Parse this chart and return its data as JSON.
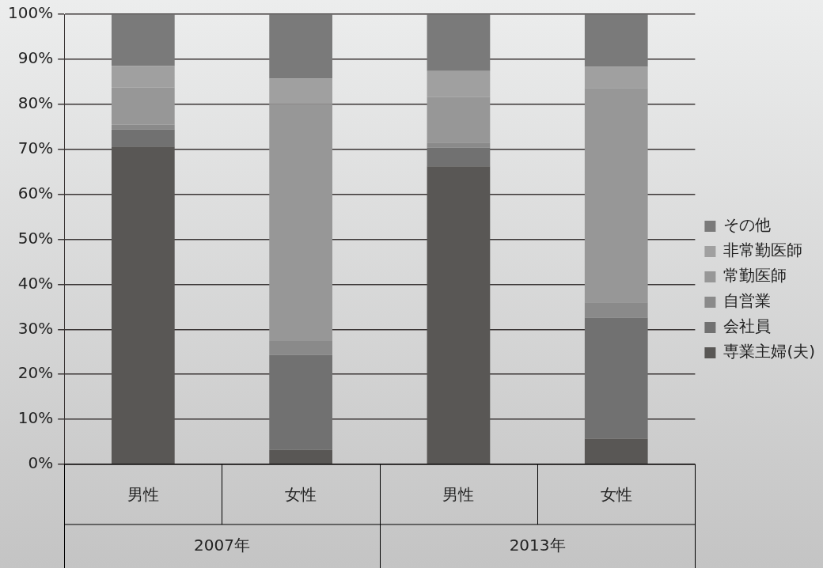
{
  "chart_data": {
    "type": "bar",
    "stacked": true,
    "categories": [
      "男性",
      "女性",
      "男性",
      "女性"
    ],
    "annotations": [
      "2007年",
      "2013年"
    ],
    "series": [
      {
        "name": "専業主婦(夫)",
        "color": "#595755",
        "values": [
          70.6,
          3.2,
          66.2,
          5.7
        ]
      },
      {
        "name": "会社員",
        "color": "#717171",
        "values": [
          3.8,
          21.1,
          4.2,
          26.9
        ]
      },
      {
        "name": "自営業",
        "color": "#8a8a8a",
        "values": [
          1.1,
          3.1,
          1.1,
          3.4
        ]
      },
      {
        "name": "常勤医師",
        "color": "#979797",
        "values": [
          8.2,
          52.6,
          10.1,
          47.6
        ]
      },
      {
        "name": "非常勤医師",
        "color": "#a0a0a0",
        "values": [
          4.8,
          5.7,
          5.8,
          4.7
        ]
      },
      {
        "name": "その他",
        "color": "#7a7a7a",
        "values": [
          11.5,
          14.3,
          12.6,
          11.7
        ]
      }
    ],
    "ylim": [
      0,
      100
    ],
    "yticks": [
      {
        "value": 0,
        "label": "0%"
      },
      {
        "value": 10,
        "label": "10%"
      },
      {
        "value": 20,
        "label": "20%"
      },
      {
        "value": 30,
        "label": "30%"
      },
      {
        "value": 40,
        "label": "40%"
      },
      {
        "value": 50,
        "label": "50%"
      },
      {
        "value": 60,
        "label": "60%"
      },
      {
        "value": 70,
        "label": "70%"
      },
      {
        "value": 80,
        "label": "80%"
      },
      {
        "value": 90,
        "label": "90%"
      },
      {
        "value": 100,
        "label": "100%"
      }
    ],
    "grid": "y",
    "legend": "right"
  }
}
